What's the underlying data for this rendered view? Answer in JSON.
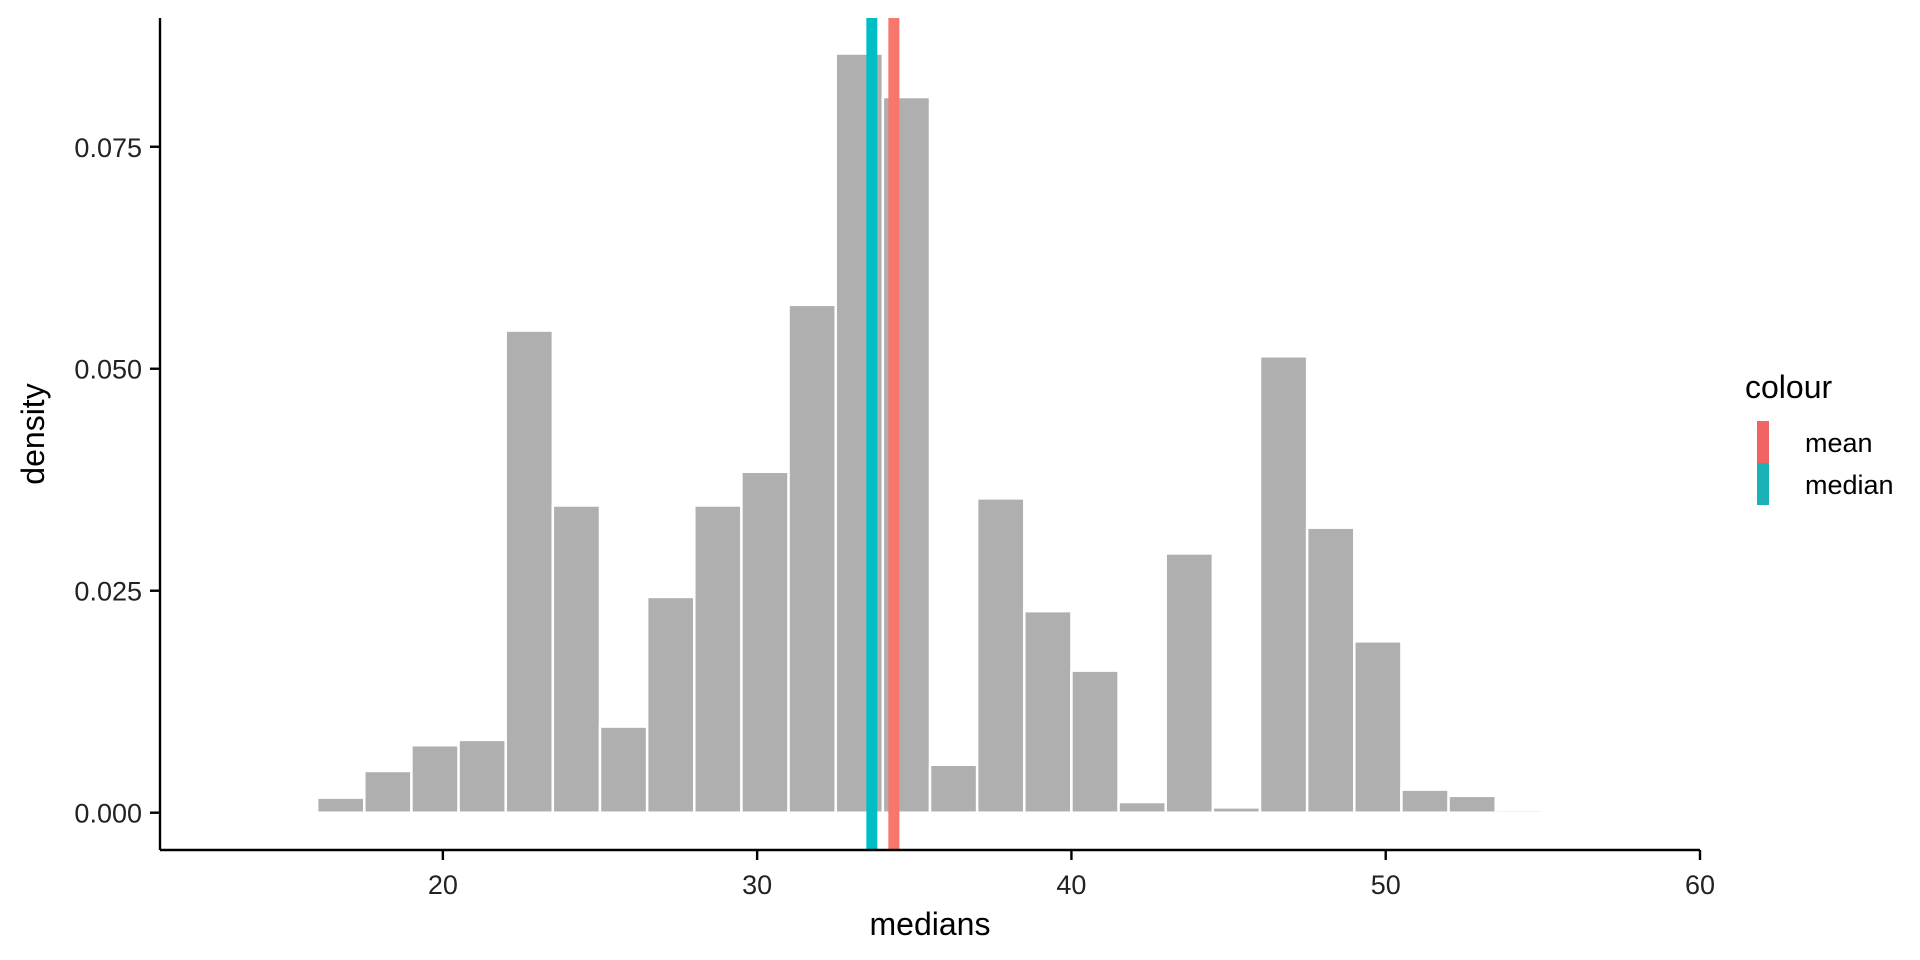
{
  "chart_data": {
    "type": "bar",
    "subtype": "histogram",
    "xlabel": "medians",
    "ylabel": "density",
    "xlim": [
      11,
      60
    ],
    "ylim": [
      -0.0042,
      0.0895
    ],
    "x_ticks": [
      {
        "value": 20,
        "label": "20"
      },
      {
        "value": 30,
        "label": "30"
      },
      {
        "value": 40,
        "label": "40"
      },
      {
        "value": 50,
        "label": "50"
      },
      {
        "value": 60,
        "label": "60"
      }
    ],
    "y_ticks": [
      {
        "value": 0.0,
        "label": "0.000"
      },
      {
        "value": 0.025,
        "label": "0.025"
      },
      {
        "value": 0.05,
        "label": "0.050"
      },
      {
        "value": 0.075,
        "label": "0.075"
      }
    ],
    "bin_width": 1.5,
    "bins": [
      {
        "start": 16.0,
        "end": 17.5,
        "density": 0.0017
      },
      {
        "start": 17.5,
        "end": 19.0,
        "density": 0.0047
      },
      {
        "start": 19.0,
        "end": 20.5,
        "density": 0.0076
      },
      {
        "start": 20.5,
        "end": 22.0,
        "density": 0.0082
      },
      {
        "start": 22.0,
        "end": 23.5,
        "density": 0.0543
      },
      {
        "start": 23.5,
        "end": 25.0,
        "density": 0.0346
      },
      {
        "start": 25.0,
        "end": 26.5,
        "density": 0.0097
      },
      {
        "start": 26.5,
        "end": 28.0,
        "density": 0.0243
      },
      {
        "start": 28.0,
        "end": 29.5,
        "density": 0.0346
      },
      {
        "start": 29.5,
        "end": 31.0,
        "density": 0.0384
      },
      {
        "start": 31.0,
        "end": 32.5,
        "density": 0.0572
      },
      {
        "start": 32.5,
        "end": 34.0,
        "density": 0.0855
      },
      {
        "start": 34.0,
        "end": 35.5,
        "density": 0.0806
      },
      {
        "start": 35.5,
        "end": 37.0,
        "density": 0.0054
      },
      {
        "start": 37.0,
        "end": 38.5,
        "density": 0.0354
      },
      {
        "start": 38.5,
        "end": 40.0,
        "density": 0.0227
      },
      {
        "start": 40.0,
        "end": 41.5,
        "density": 0.016
      },
      {
        "start": 41.5,
        "end": 43.0,
        "density": 0.0012
      },
      {
        "start": 43.0,
        "end": 44.5,
        "density": 0.0292
      },
      {
        "start": 44.5,
        "end": 46.0,
        "density": 0.0006
      },
      {
        "start": 46.0,
        "end": 47.5,
        "density": 0.0514
      },
      {
        "start": 47.5,
        "end": 49.0,
        "density": 0.0321
      },
      {
        "start": 49.0,
        "end": 50.5,
        "density": 0.0193
      },
      {
        "start": 50.5,
        "end": 52.0,
        "density": 0.0026
      },
      {
        "start": 52.0,
        "end": 53.5,
        "density": 0.0019
      },
      {
        "start": 53.5,
        "end": 55.0,
        "density": 0.0003
      }
    ],
    "bar_fill": "#afafaf",
    "bar_outline": "#ffffff",
    "vlines": [
      {
        "name": "mean",
        "x": 34.35,
        "color": "#f8766d"
      },
      {
        "name": "median",
        "x": 33.65,
        "color": "#00bfc4"
      }
    ],
    "legend": {
      "title": "colour",
      "position": "right",
      "entries": [
        {
          "label": "mean",
          "color": "#f06462"
        },
        {
          "label": "median",
          "color": "#1ab2b9"
        }
      ]
    },
    "grid": false
  }
}
